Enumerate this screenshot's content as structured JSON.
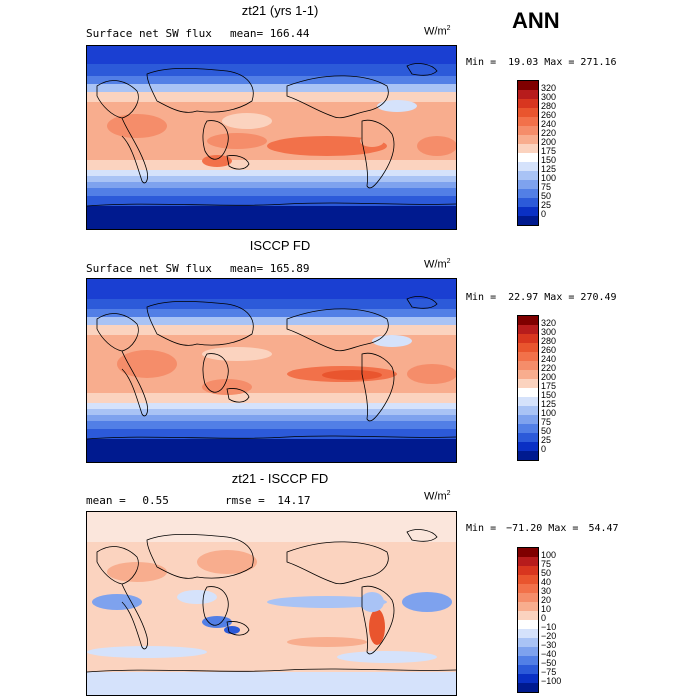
{
  "season": "ANN",
  "panels": [
    {
      "title": "zt21 (yrs 1-1)",
      "field": "Surface net SW flux",
      "mean_label": "mean=",
      "mean_value": "166.44",
      "rmse_label": "",
      "rmse_value": "",
      "units": "W/m",
      "units_exp": "2",
      "min_label": "Min =",
      "min_value": "19.03",
      "max_label": "Max =",
      "max_value": "271.16",
      "scale": "absolute",
      "levels": [
        "320",
        "300",
        "280",
        "260",
        "240",
        "220",
        "200",
        "175",
        "150",
        "125",
        "100",
        "75",
        "50",
        "25",
        "0"
      ]
    },
    {
      "title": "ISCCP FD",
      "field": "Surface net SW flux",
      "mean_label": "mean=",
      "mean_value": "165.89",
      "rmse_label": "",
      "rmse_value": "",
      "units": "W/m",
      "units_exp": "2",
      "min_label": "Min =",
      "min_value": "22.97",
      "max_label": "Max =",
      "max_value": "270.49",
      "scale": "absolute",
      "levels": [
        "320",
        "300",
        "280",
        "260",
        "240",
        "220",
        "200",
        "175",
        "150",
        "125",
        "100",
        "75",
        "50",
        "25",
        "0"
      ]
    },
    {
      "title": "zt21 - ISCCP FD",
      "field": "",
      "mean_label": "mean =",
      "mean_value": "0.55",
      "rmse_label": "rmse =",
      "rmse_value": "14.17",
      "units": "W/m",
      "units_exp": "2",
      "min_label": "Min =",
      "min_value": "−71.20",
      "max_label": "Max =",
      "max_value": "54.47",
      "scale": "difference",
      "levels": [
        "100",
        "75",
        "50",
        "40",
        "30",
        "20",
        "10",
        "0",
        "−10",
        "−20",
        "−30",
        "−40",
        "−50",
        "−75",
        "−100"
      ]
    }
  ],
  "colors": {
    "absolute": [
      "#7f0000",
      "#b71c1c",
      "#d8361f",
      "#e9552e",
      "#f2714a",
      "#f58d6a",
      "#f8ad8e",
      "#fbd3bf",
      "#ffffff",
      "#d5e2fb",
      "#a9c3f5",
      "#7ea2ee",
      "#527fe6",
      "#2c5ad9",
      "#0a30c4",
      "#001a8f"
    ],
    "difference": [
      "#7f0000",
      "#b71c1c",
      "#d8361f",
      "#e9552e",
      "#f2714a",
      "#f58d6a",
      "#f8ad8e",
      "#fbd3bf",
      "#ffffff",
      "#d5e2fb",
      "#a9c3f5",
      "#7ea2ee",
      "#527fe6",
      "#2c5ad9",
      "#0a30c4",
      "#001a8f"
    ]
  }
}
